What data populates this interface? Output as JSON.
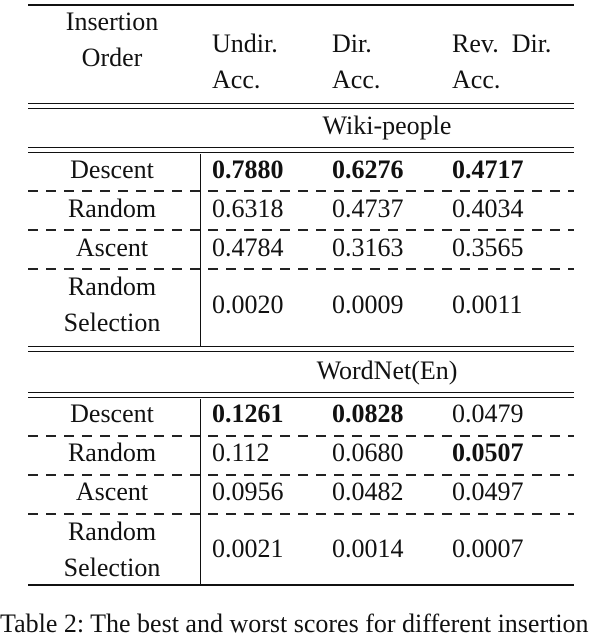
{
  "header": {
    "col0_line1": "Insertion",
    "col0_line2": "Order",
    "col1_line1": "Undir.",
    "col1_line2": "Acc.",
    "col2_line1": "Dir.",
    "col2_line2": "Acc.",
    "col3_line1": "Rev.  Dir.",
    "col3_line2": "Acc."
  },
  "sections": [
    {
      "title": "Wiki-people",
      "rows": [
        {
          "order": "Descent",
          "undir": "0.7880",
          "dir": "0.6276",
          "rev": "0.4717"
        },
        {
          "order": "Random",
          "undir": "0.6318",
          "dir": "0.4737",
          "rev": "0.4034"
        },
        {
          "order": "Ascent",
          "undir": "0.4784",
          "dir": "0.3163",
          "rev": "0.3565"
        },
        {
          "order_line1": "Random",
          "order_line2": "Selection",
          "undir": "0.0020",
          "dir": "0.0009",
          "rev": "0.0011"
        }
      ]
    },
    {
      "title": "WordNet(En)",
      "rows": [
        {
          "order": "Descent",
          "undir": "0.1261",
          "dir": "0.0828",
          "rev": "0.0479"
        },
        {
          "order": "Random",
          "undir": "0.112",
          "dir": "0.0680",
          "rev": "0.0507"
        },
        {
          "order": "Ascent",
          "undir": "0.0956",
          "dir": "0.0482",
          "rev": "0.0497"
        },
        {
          "order_line1": "Random",
          "order_line2": "Selection",
          "undir": "0.0021",
          "dir": "0.0014",
          "rev": "0.0007"
        }
      ]
    }
  ],
  "caption": "Table 2: The best and worst scores for different insertion"
}
